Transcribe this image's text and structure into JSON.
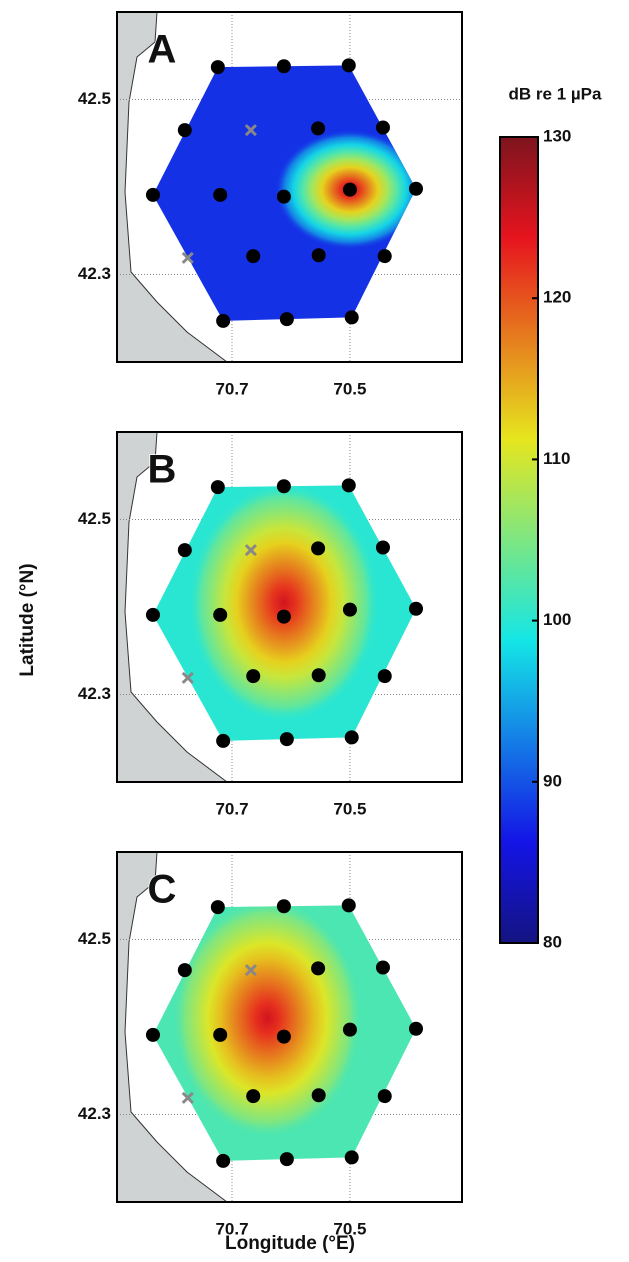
{
  "colorbar_title": "dB re 1 µPa",
  "xlabel": "Longitude (°E)",
  "ylabel": "Latitude (°N)",
  "xlim": [
    70.895,
    70.31
  ],
  "ylim": [
    42.2,
    42.6
  ],
  "xticks": [
    70.7,
    70.5
  ],
  "yticks": [
    42.5,
    42.3
  ],
  "clim": [
    80,
    130
  ],
  "cticks": [
    80,
    90,
    100,
    110,
    120,
    130
  ],
  "stations": {
    "lon": [
      70.724,
      70.612,
      70.502,
      70.78,
      70.554,
      70.444,
      70.834,
      70.72,
      70.612,
      70.5,
      70.388,
      70.664,
      70.553,
      70.441,
      70.715,
      70.607,
      70.497
    ],
    "lat": [
      42.537,
      42.538,
      42.539,
      42.465,
      42.467,
      42.468,
      42.391,
      42.391,
      42.389,
      42.397,
      42.398,
      42.321,
      42.322,
      42.321,
      42.247,
      42.249,
      42.251
    ]
  },
  "crosses": {
    "lon": [
      70.668,
      70.775
    ],
    "lat": [
      42.465,
      42.319
    ]
  },
  "panels": [
    {
      "label": "A",
      "background_level": 88,
      "peak": {
        "lon": 70.5,
        "lat": 42.397,
        "level": 127
      }
    },
    {
      "label": "B",
      "background_level": 100,
      "peak": {
        "lon": 70.612,
        "lat": 42.405,
        "level": 125
      }
    },
    {
      "label": "C",
      "background_level": 102,
      "peak": {
        "lon": 70.64,
        "lat": 42.41,
        "level": 125
      }
    }
  ]
}
